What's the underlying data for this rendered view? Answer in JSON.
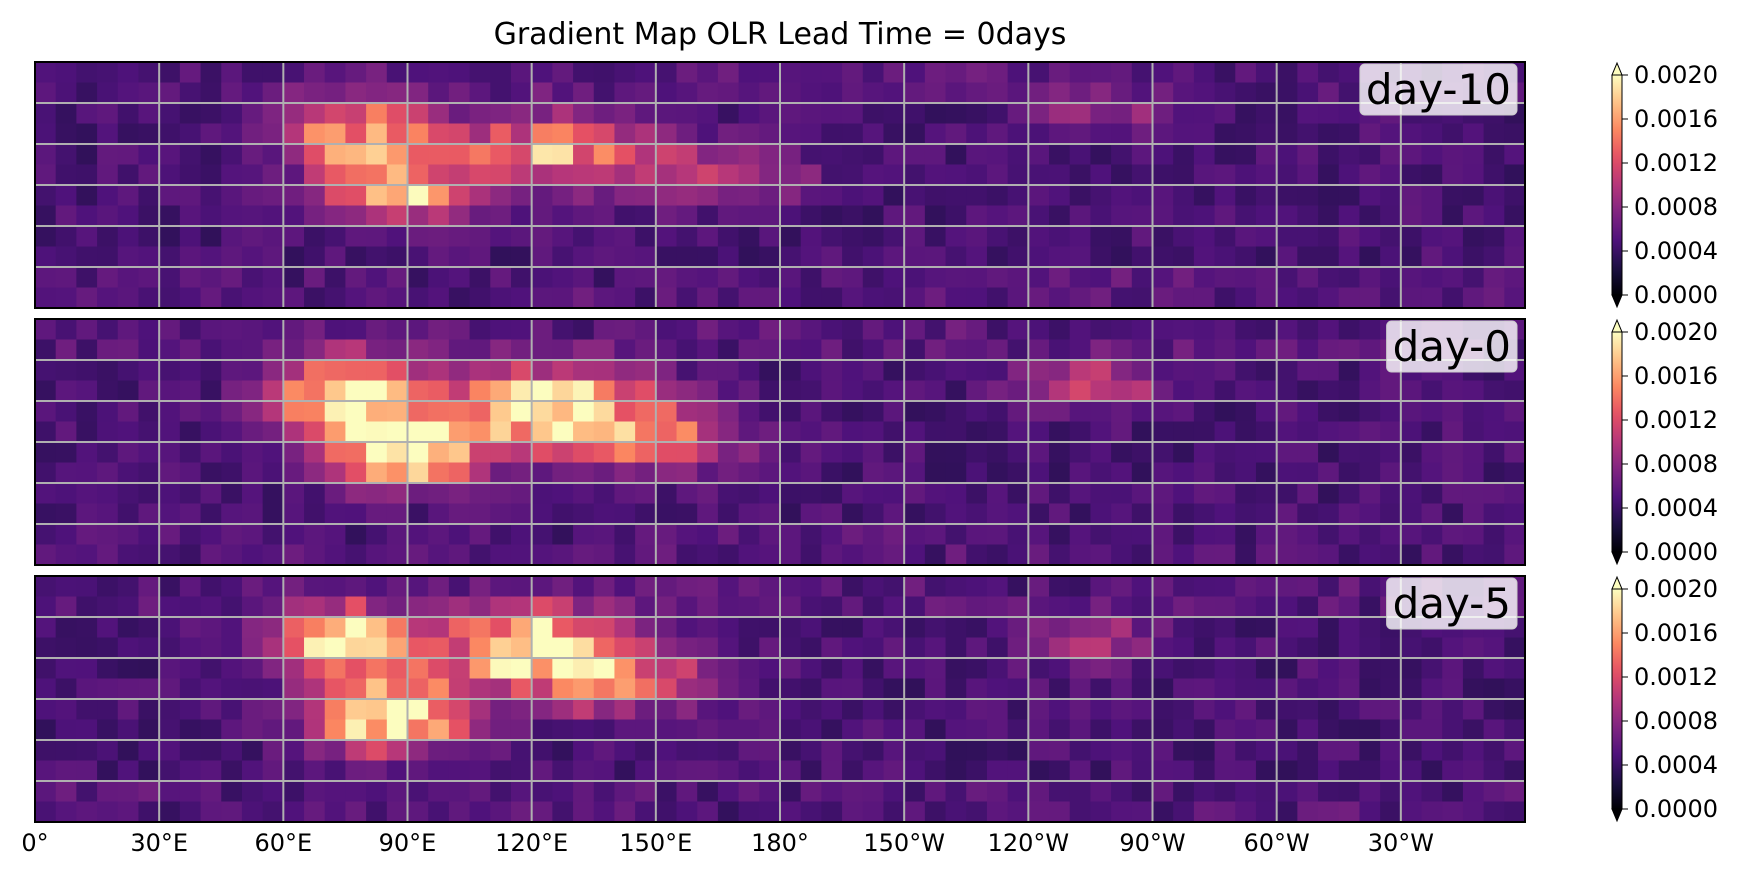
{
  "chart_data": {
    "type": "heatmap",
    "title": "Gradient Map  OLR   Lead Time = 0days",
    "colormap": "magma",
    "color_stops": [
      "#000004",
      "#1c1044",
      "#4f127b",
      "#812581",
      "#b5367a",
      "#e55064",
      "#fb8761",
      "#fec287",
      "#fcfdbf"
    ],
    "grid_color": "#b0b0b0",
    "x_ticks": [
      "0°",
      "30°E",
      "60°E",
      "90°E",
      "120°E",
      "150°E",
      "180°",
      "150°W",
      "120°W",
      "90°W",
      "60°W",
      "30°W"
    ],
    "x_tick_lons": [
      0,
      30,
      60,
      90,
      120,
      150,
      180,
      210,
      240,
      270,
      300,
      330
    ],
    "lon_range": [
      0,
      360
    ],
    "lat_range": [
      -30,
      30
    ],
    "lat_gridlines": [
      -20,
      -10,
      0,
      10,
      20
    ],
    "grid_resolution_deg": 5,
    "panels": [
      {
        "label": "day-10",
        "hotspots": [
          {
            "lon": 78,
            "lat": 12,
            "amp": 0.0014,
            "sx": 12,
            "sy": 6
          },
          {
            "lon": 88,
            "lat": -2,
            "amp": 0.0013,
            "sx": 12,
            "sy": 5
          },
          {
            "lon": 125,
            "lat": 8,
            "amp": 0.0012,
            "sx": 18,
            "sy": 6
          },
          {
            "lon": 165,
            "lat": 3,
            "amp": 0.0006,
            "sx": 15,
            "sy": 5
          },
          {
            "lon": 255,
            "lat": 18,
            "amp": 0.0005,
            "sx": 12,
            "sy": 4
          }
        ]
      },
      {
        "label": "day-0",
        "hotspots": [
          {
            "lon": 75,
            "lat": 12,
            "amp": 0.0018,
            "sx": 12,
            "sy": 6
          },
          {
            "lon": 88,
            "lat": -2,
            "amp": 0.0019,
            "sx": 12,
            "sy": 6
          },
          {
            "lon": 125,
            "lat": 8,
            "amp": 0.0017,
            "sx": 18,
            "sy": 7
          },
          {
            "lon": 150,
            "lat": 0,
            "amp": 0.0008,
            "sx": 15,
            "sy": 5
          },
          {
            "lon": 255,
            "lat": 14,
            "amp": 0.0008,
            "sx": 12,
            "sy": 4
          }
        ]
      },
      {
        "label": "day-5",
        "hotspots": [
          {
            "lon": 75,
            "lat": 14,
            "amp": 0.0016,
            "sx": 12,
            "sy": 6
          },
          {
            "lon": 85,
            "lat": -4,
            "amp": 0.0019,
            "sx": 12,
            "sy": 6
          },
          {
            "lon": 122,
            "lat": 12,
            "amp": 0.0018,
            "sx": 15,
            "sy": 7
          },
          {
            "lon": 145,
            "lat": 4,
            "amp": 0.0008,
            "sx": 15,
            "sy": 5
          },
          {
            "lon": 255,
            "lat": 14,
            "amp": 0.0006,
            "sx": 12,
            "sy": 4
          }
        ]
      }
    ],
    "colorbar": {
      "min": 0.0,
      "max": 0.002,
      "ticks": [
        "0.0020",
        "0.0016",
        "0.0012",
        "0.0008",
        "0.0004",
        "0.0000"
      ],
      "tick_values": [
        0.002,
        0.0016,
        0.0012,
        0.0008,
        0.0004,
        0.0
      ],
      "extend": "both"
    }
  }
}
